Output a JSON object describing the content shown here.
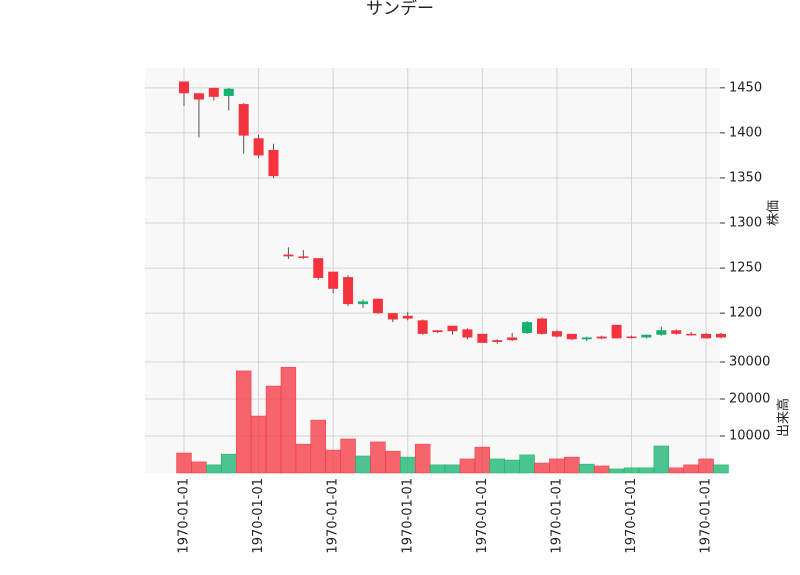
{
  "chart_data": {
    "type": "candlestick",
    "title": "サンデー",
    "categories": [
      "1970-01-01",
      null,
      null,
      null,
      null,
      "1970-01-01",
      null,
      null,
      null,
      null,
      "1970-01-01",
      null,
      null,
      null,
      null,
      "1970-01-01",
      null,
      null,
      null,
      null,
      "1970-01-01",
      null,
      null,
      null,
      null,
      "1970-01-01",
      null,
      null,
      null,
      null,
      "1970-01-01",
      null,
      null,
      null,
      null,
      "1970-01-01",
      null
    ],
    "open": [
      1457,
      1444,
      1450,
      1441,
      1432,
      1394,
      1381,
      1265,
      1263,
      1261,
      1246,
      1240,
      1210,
      1216,
      1200,
      1197,
      1192,
      1181,
      1186,
      1182,
      1177,
      1170,
      1173,
      1178,
      1194,
      1180,
      1177,
      1171,
      1174,
      1187,
      1174,
      1173,
      1176,
      1181,
      1177,
      1177,
      1177
    ],
    "high": [
      1457,
      1444,
      1450,
      1450,
      1433,
      1398,
      1388,
      1273,
      1270,
      1261,
      1246,
      1242,
      1215,
      1216,
      1200,
      1201,
      1193,
      1181,
      1186,
      1183,
      1177,
      1171,
      1178,
      1191,
      1195,
      1181,
      1177,
      1174,
      1175,
      1187,
      1175,
      1176,
      1185,
      1182,
      1179,
      1178,
      1178
    ],
    "low": [
      1430,
      1395,
      1436,
      1425,
      1377,
      1372,
      1350,
      1260,
      1260,
      1237,
      1222,
      1208,
      1206,
      1199,
      1190,
      1192,
      1176,
      1178,
      1176,
      1171,
      1167,
      1166,
      1169,
      1177,
      1176,
      1173,
      1170,
      1169,
      1171,
      1172,
      1172,
      1172,
      1175,
      1176,
      1175,
      1172,
      1172
    ],
    "close": [
      1444,
      1437,
      1440,
      1449,
      1397,
      1375,
      1352,
      1263,
      1262,
      1239,
      1227,
      1210,
      1213,
      1200,
      1193,
      1194,
      1177,
      1179,
      1180,
      1173,
      1167,
      1168,
      1170,
      1190,
      1177,
      1174,
      1171,
      1173,
      1172,
      1172,
      1173,
      1176,
      1181,
      1177,
      1176,
      1172,
      1173
    ],
    "ylim": [
      1148,
      1472
    ],
    "yticks": [
      1200,
      1250,
      1300,
      1350,
      1400,
      1450
    ],
    "ylabel": "株価",
    "volume": {
      "values": [
        5400,
        3000,
        2200,
        5100,
        27600,
        15400,
        23500,
        28600,
        7800,
        14300,
        6200,
        9200,
        4600,
        8400,
        5900,
        4300,
        7800,
        2200,
        2200,
        3800,
        7000,
        3800,
        3500,
        4900,
        2700,
        3800,
        4300,
        2400,
        1900,
        1100,
        1400,
        1400,
        7300,
        1400,
        2200,
        3800,
        2200
      ],
      "ylim": [
        0,
        30540
      ],
      "yticks": [
        10000,
        20000,
        30000
      ],
      "ylabel": "出来高"
    },
    "up_color": "#12b36c",
    "down_color": "#f5333f",
    "grid": true
  }
}
